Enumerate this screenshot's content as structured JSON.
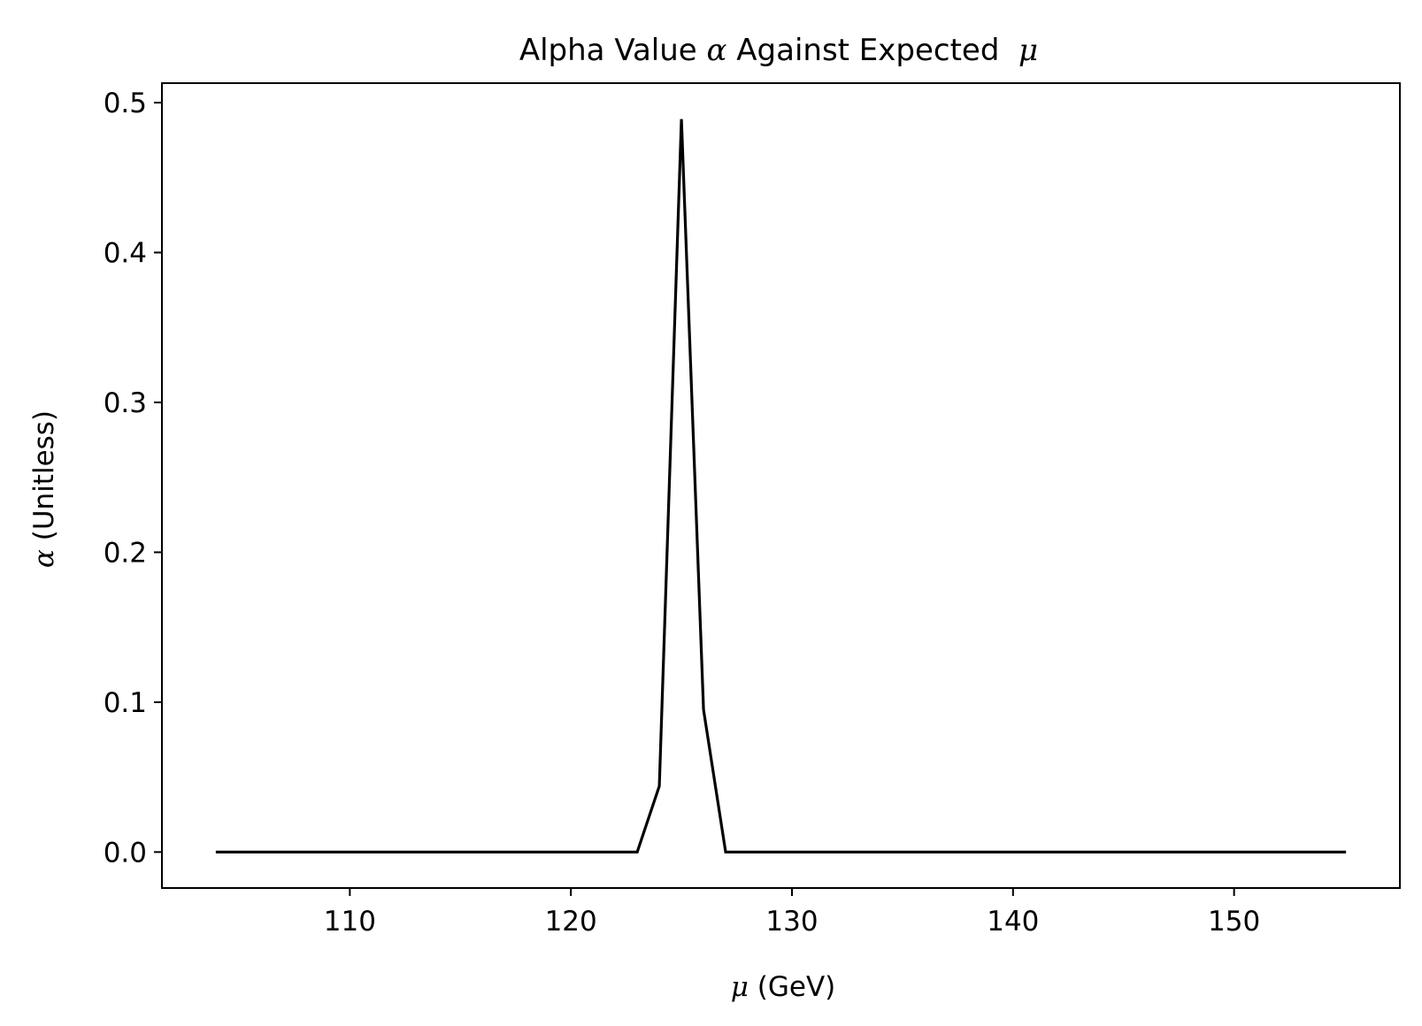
{
  "chart_data": {
    "type": "line",
    "title_parts": [
      "Alpha Value ",
      "α",
      " Against Expected  ",
      "μ"
    ],
    "xlabel_parts": [
      "μ",
      " (GeV)"
    ],
    "ylabel_parts": [
      "α",
      " (Unitless)"
    ],
    "xlim": [
      101.5,
      157.5
    ],
    "ylim": [
      -0.024,
      0.513
    ],
    "xticks": [
      110,
      120,
      130,
      140,
      150
    ],
    "yticks": [
      0.0,
      0.1,
      0.2,
      0.3,
      0.4,
      0.5
    ],
    "ytick_labels": [
      "0.0",
      "0.1",
      "0.2",
      "0.3",
      "0.4",
      "0.5"
    ],
    "grid": false,
    "legend": "none",
    "series": [
      {
        "color": "#000000",
        "x": [
          104,
          105,
          106,
          107,
          108,
          109,
          110,
          111,
          112,
          113,
          114,
          115,
          116,
          117,
          118,
          119,
          120,
          121,
          122,
          123,
          124,
          125,
          126,
          127,
          128,
          129,
          130,
          131,
          132,
          133,
          134,
          135,
          136,
          137,
          138,
          139,
          140,
          141,
          142,
          143,
          144,
          145,
          146,
          147,
          148,
          149,
          150,
          151,
          152,
          153,
          154,
          155
        ],
        "y": [
          0,
          0,
          0,
          0,
          0,
          0,
          0,
          0,
          0,
          0,
          0,
          0,
          0,
          0,
          0,
          0,
          0,
          0,
          0,
          0,
          0.044,
          0.489,
          0.095,
          0,
          0,
          0,
          0,
          0,
          0,
          0,
          0,
          0,
          0,
          0,
          0,
          0,
          0,
          0,
          0,
          0,
          0,
          0,
          0,
          0,
          0,
          0,
          0,
          0,
          0,
          0,
          0,
          0
        ]
      }
    ]
  }
}
